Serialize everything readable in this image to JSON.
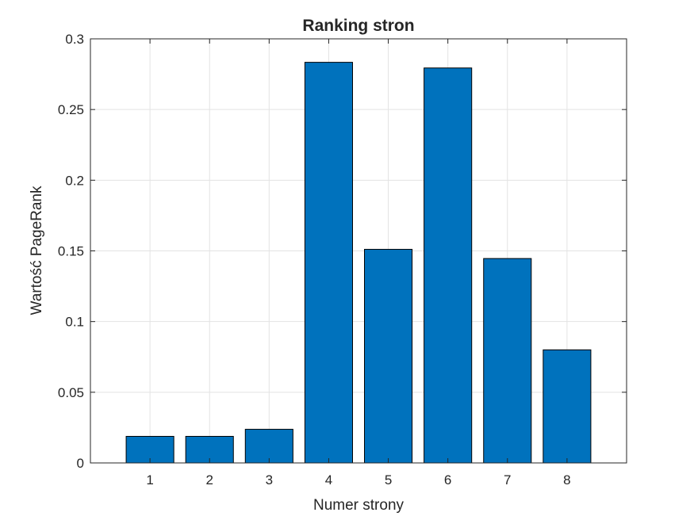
{
  "chart_data": {
    "type": "bar",
    "title": "Ranking stron",
    "xlabel": "Numer strony",
    "ylabel": "Wartość PageRank",
    "categories": [
      "1",
      "2",
      "3",
      "4",
      "5",
      "6",
      "7",
      "8"
    ],
    "values": [
      0.0188,
      0.0188,
      0.0238,
      0.2834,
      0.1511,
      0.2794,
      0.1446,
      0.08
    ],
    "ylim": [
      0,
      0.3
    ],
    "xlim": [
      0,
      9
    ],
    "yticks": [
      "0",
      "0.05",
      "0.1",
      "0.15",
      "0.2",
      "0.25",
      "0.3"
    ],
    "ytick_values": [
      0,
      0.05,
      0.1,
      0.15,
      0.2,
      0.25,
      0.3
    ],
    "grid": true,
    "colors": {
      "bar": "#0072BD",
      "bar_edge": "#000000",
      "grid": "#e3e3e3",
      "axis": "#262626"
    }
  }
}
